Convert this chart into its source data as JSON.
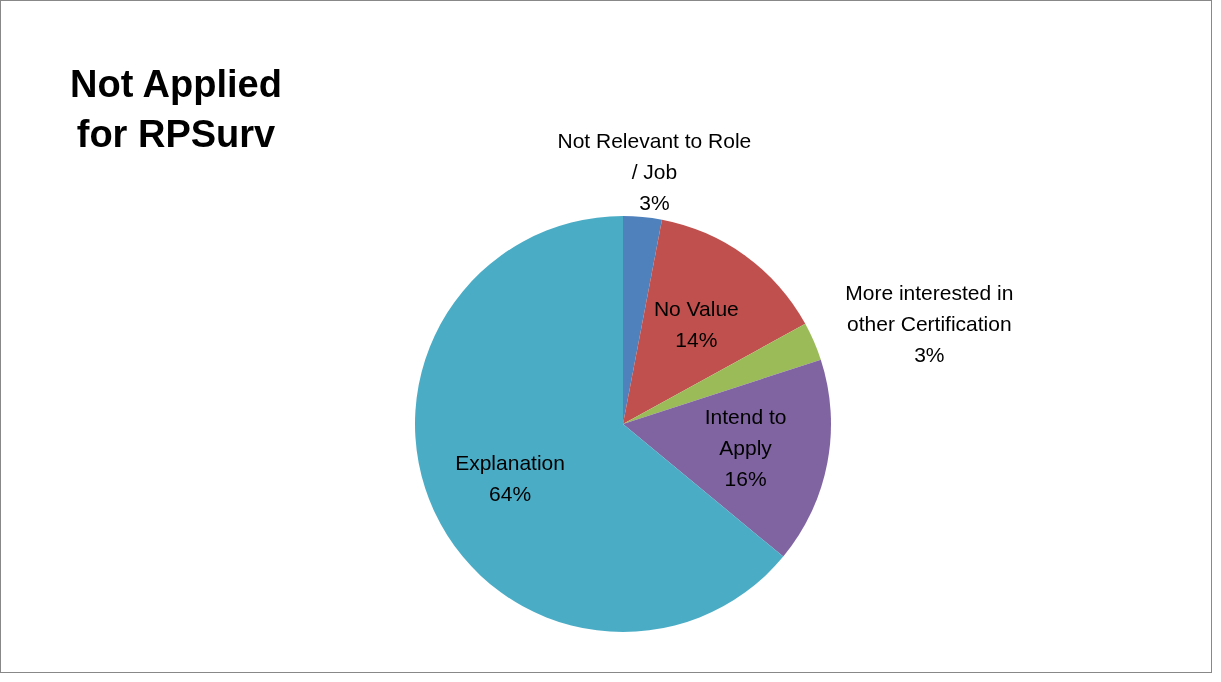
{
  "chart_data": {
    "type": "pie",
    "title": "Not Applied for RPSurv",
    "categories": [
      "Not Relevant to Role / Job",
      "No Value",
      "More interested in other Certification",
      "Intend to Apply",
      "Explanation"
    ],
    "values": [
      3,
      14,
      3,
      16,
      64
    ],
    "value_labels": [
      "3%",
      "14%",
      "3%",
      "16%",
      "64%"
    ],
    "colors": [
      "#4f81bd",
      "#c0504d",
      "#9bbb59",
      "#8064a2",
      "#4bacc6"
    ]
  }
}
